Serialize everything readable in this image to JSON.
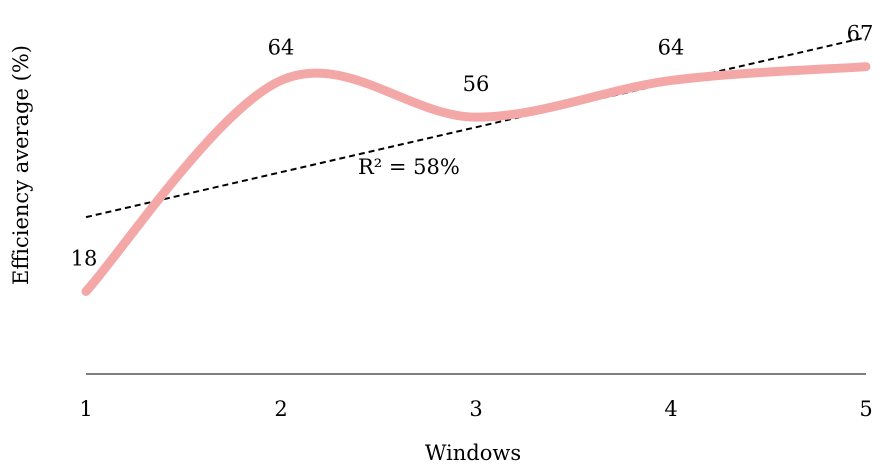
{
  "chart_data": {
    "type": "line",
    "title": "",
    "xlabel": "Windows",
    "ylabel": "Efficiency average (%)",
    "categories": [
      "1",
      "2",
      "3",
      "4",
      "5"
    ],
    "x": [
      1,
      2,
      3,
      4,
      5
    ],
    "series": [
      {
        "values": [
          18,
          64,
          56,
          64,
          67
        ],
        "color": "#F4A7A7",
        "smooth": true,
        "data_labels": [
          "18",
          "64",
          "56",
          "64",
          "67"
        ]
      }
    ],
    "trendline": {
      "type": "linear",
      "style": "dashed",
      "color": "#000000",
      "annotation": "R² = 58%"
    },
    "ylim": [
      0,
      75
    ],
    "grid": false,
    "legend": "none",
    "y_axis_visible": false
  }
}
